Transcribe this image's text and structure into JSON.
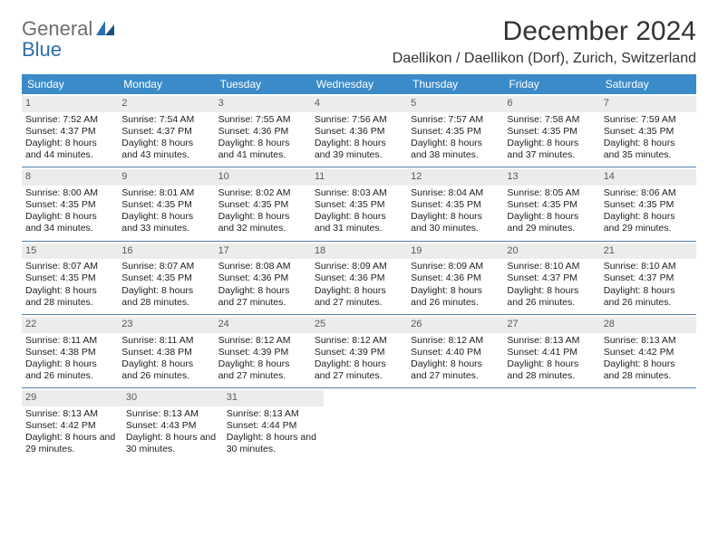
{
  "logo": {
    "word1": "General",
    "word2": "Blue"
  },
  "header": {
    "month_title": "December 2024",
    "location": "Daellikon / Daellikon (Dorf), Zurich, Switzerland"
  },
  "colors": {
    "header_band": "#3b8bc8",
    "header_text": "#ffffff",
    "daynum_band": "#ececec",
    "row_divider": "#5a7fa6",
    "body_text": "#222222",
    "logo_gray": "#6e6e6e",
    "logo_blue": "#2f6fab"
  },
  "typography": {
    "month_title_pt": 30,
    "location_pt": 16,
    "dayheader_pt": 12,
    "body_pt": 10.5
  },
  "day_labels": [
    "Sunday",
    "Monday",
    "Tuesday",
    "Wednesday",
    "Thursday",
    "Friday",
    "Saturday"
  ],
  "weeks": [
    [
      {
        "num": "1",
        "sunrise": "Sunrise: 7:52 AM",
        "sunset": "Sunset: 4:37 PM",
        "daylight": "Daylight: 8 hours and 44 minutes."
      },
      {
        "num": "2",
        "sunrise": "Sunrise: 7:54 AM",
        "sunset": "Sunset: 4:37 PM",
        "daylight": "Daylight: 8 hours and 43 minutes."
      },
      {
        "num": "3",
        "sunrise": "Sunrise: 7:55 AM",
        "sunset": "Sunset: 4:36 PM",
        "daylight": "Daylight: 8 hours and 41 minutes."
      },
      {
        "num": "4",
        "sunrise": "Sunrise: 7:56 AM",
        "sunset": "Sunset: 4:36 PM",
        "daylight": "Daylight: 8 hours and 39 minutes."
      },
      {
        "num": "5",
        "sunrise": "Sunrise: 7:57 AM",
        "sunset": "Sunset: 4:35 PM",
        "daylight": "Daylight: 8 hours and 38 minutes."
      },
      {
        "num": "6",
        "sunrise": "Sunrise: 7:58 AM",
        "sunset": "Sunset: 4:35 PM",
        "daylight": "Daylight: 8 hours and 37 minutes."
      },
      {
        "num": "7",
        "sunrise": "Sunrise: 7:59 AM",
        "sunset": "Sunset: 4:35 PM",
        "daylight": "Daylight: 8 hours and 35 minutes."
      }
    ],
    [
      {
        "num": "8",
        "sunrise": "Sunrise: 8:00 AM",
        "sunset": "Sunset: 4:35 PM",
        "daylight": "Daylight: 8 hours and 34 minutes."
      },
      {
        "num": "9",
        "sunrise": "Sunrise: 8:01 AM",
        "sunset": "Sunset: 4:35 PM",
        "daylight": "Daylight: 8 hours and 33 minutes."
      },
      {
        "num": "10",
        "sunrise": "Sunrise: 8:02 AM",
        "sunset": "Sunset: 4:35 PM",
        "daylight": "Daylight: 8 hours and 32 minutes."
      },
      {
        "num": "11",
        "sunrise": "Sunrise: 8:03 AM",
        "sunset": "Sunset: 4:35 PM",
        "daylight": "Daylight: 8 hours and 31 minutes."
      },
      {
        "num": "12",
        "sunrise": "Sunrise: 8:04 AM",
        "sunset": "Sunset: 4:35 PM",
        "daylight": "Daylight: 8 hours and 30 minutes."
      },
      {
        "num": "13",
        "sunrise": "Sunrise: 8:05 AM",
        "sunset": "Sunset: 4:35 PM",
        "daylight": "Daylight: 8 hours and 29 minutes."
      },
      {
        "num": "14",
        "sunrise": "Sunrise: 8:06 AM",
        "sunset": "Sunset: 4:35 PM",
        "daylight": "Daylight: 8 hours and 29 minutes."
      }
    ],
    [
      {
        "num": "15",
        "sunrise": "Sunrise: 8:07 AM",
        "sunset": "Sunset: 4:35 PM",
        "daylight": "Daylight: 8 hours and 28 minutes."
      },
      {
        "num": "16",
        "sunrise": "Sunrise: 8:07 AM",
        "sunset": "Sunset: 4:35 PM",
        "daylight": "Daylight: 8 hours and 28 minutes."
      },
      {
        "num": "17",
        "sunrise": "Sunrise: 8:08 AM",
        "sunset": "Sunset: 4:36 PM",
        "daylight": "Daylight: 8 hours and 27 minutes."
      },
      {
        "num": "18",
        "sunrise": "Sunrise: 8:09 AM",
        "sunset": "Sunset: 4:36 PM",
        "daylight": "Daylight: 8 hours and 27 minutes."
      },
      {
        "num": "19",
        "sunrise": "Sunrise: 8:09 AM",
        "sunset": "Sunset: 4:36 PM",
        "daylight": "Daylight: 8 hours and 26 minutes."
      },
      {
        "num": "20",
        "sunrise": "Sunrise: 8:10 AM",
        "sunset": "Sunset: 4:37 PM",
        "daylight": "Daylight: 8 hours and 26 minutes."
      },
      {
        "num": "21",
        "sunrise": "Sunrise: 8:10 AM",
        "sunset": "Sunset: 4:37 PM",
        "daylight": "Daylight: 8 hours and 26 minutes."
      }
    ],
    [
      {
        "num": "22",
        "sunrise": "Sunrise: 8:11 AM",
        "sunset": "Sunset: 4:38 PM",
        "daylight": "Daylight: 8 hours and 26 minutes."
      },
      {
        "num": "23",
        "sunrise": "Sunrise: 8:11 AM",
        "sunset": "Sunset: 4:38 PM",
        "daylight": "Daylight: 8 hours and 26 minutes."
      },
      {
        "num": "24",
        "sunrise": "Sunrise: 8:12 AM",
        "sunset": "Sunset: 4:39 PM",
        "daylight": "Daylight: 8 hours and 27 minutes."
      },
      {
        "num": "25",
        "sunrise": "Sunrise: 8:12 AM",
        "sunset": "Sunset: 4:39 PM",
        "daylight": "Daylight: 8 hours and 27 minutes."
      },
      {
        "num": "26",
        "sunrise": "Sunrise: 8:12 AM",
        "sunset": "Sunset: 4:40 PM",
        "daylight": "Daylight: 8 hours and 27 minutes."
      },
      {
        "num": "27",
        "sunrise": "Sunrise: 8:13 AM",
        "sunset": "Sunset: 4:41 PM",
        "daylight": "Daylight: 8 hours and 28 minutes."
      },
      {
        "num": "28",
        "sunrise": "Sunrise: 8:13 AM",
        "sunset": "Sunset: 4:42 PM",
        "daylight": "Daylight: 8 hours and 28 minutes."
      }
    ],
    [
      {
        "num": "29",
        "sunrise": "Sunrise: 8:13 AM",
        "sunset": "Sunset: 4:42 PM",
        "daylight": "Daylight: 8 hours and 29 minutes."
      },
      {
        "num": "30",
        "sunrise": "Sunrise: 8:13 AM",
        "sunset": "Sunset: 4:43 PM",
        "daylight": "Daylight: 8 hours and 30 minutes."
      },
      {
        "num": "31",
        "sunrise": "Sunrise: 8:13 AM",
        "sunset": "Sunset: 4:44 PM",
        "daylight": "Daylight: 8 hours and 30 minutes."
      },
      null,
      null,
      null,
      null
    ]
  ]
}
